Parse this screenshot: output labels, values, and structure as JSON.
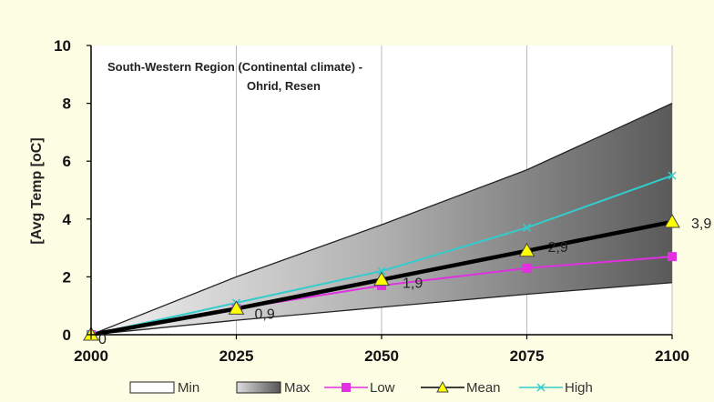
{
  "chart_data": {
    "type": "area",
    "title": "South-Western Region (Continental climate) -",
    "subtitle": "Ohrid, Resen",
    "ylabel": "[Avg Temp [oC]",
    "xlabel": "",
    "x": [
      2000,
      2025,
      2050,
      2075,
      2100
    ],
    "xlim": [
      2000,
      2100
    ],
    "ylim": [
      0,
      10
    ],
    "xticks": [
      "2000",
      "2025",
      "2050",
      "2075",
      "2100"
    ],
    "yticks": [
      "0",
      "2",
      "4",
      "6",
      "8",
      "10"
    ],
    "grid": "vertical",
    "legend_position": "bottom",
    "series": [
      {
        "name": "Min",
        "kind": "area",
        "values": [
          0,
          0.5,
          0.95,
          1.4,
          1.8
        ],
        "color": "#ffffff"
      },
      {
        "name": "Max",
        "kind": "area",
        "values": [
          0,
          2.0,
          3.8,
          5.7,
          8.0
        ],
        "color": "#808080"
      },
      {
        "name": "Low",
        "kind": "line",
        "marker": "square",
        "values": [
          0,
          0.9,
          1.7,
          2.3,
          2.7
        ],
        "color": "#e030e0"
      },
      {
        "name": "Mean",
        "kind": "line",
        "marker": "triangle",
        "values": [
          0,
          0.9,
          1.9,
          2.9,
          3.9
        ],
        "color": "#000000"
      },
      {
        "name": "High",
        "kind": "line",
        "marker": "x",
        "values": [
          0,
          1.1,
          2.2,
          3.7,
          5.5
        ],
        "color": "#33cccc"
      }
    ],
    "data_labels": [
      {
        "x": 2000,
        "y": 0,
        "text": "0"
      },
      {
        "x": 2025,
        "y": 0.9,
        "text": "0,9"
      },
      {
        "x": 2050,
        "y": 1.9,
        "text": "1,9"
      },
      {
        "x": 2075,
        "y": 2.9,
        "text": "2,9"
      },
      {
        "x": 2100,
        "y": 3.9,
        "text": "3,9"
      }
    ],
    "marker_fill": "#ffff00"
  }
}
